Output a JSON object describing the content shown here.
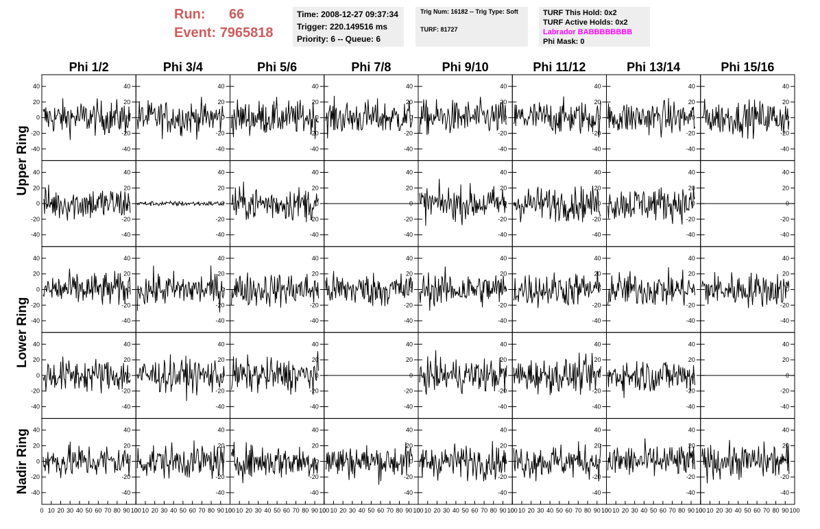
{
  "header": {
    "run_label": "Run:",
    "run_value": "66",
    "event_label": "Event:",
    "event_value": "7965818",
    "time": "Time: 2008-12-27 09:37:34",
    "trigger": "Trigger: 220.149516 ms",
    "priority": "Priority: 6 -- Queue: 6",
    "trig_num": "Trig Num: 16182 -- Trig Type: Soft",
    "turf": "TURF: 81727",
    "turf_hold": "TURF This Hold: 0x2",
    "turf_active": "TURF Active Holds: 0x2",
    "labrador": "Labrador BABBBBBBBB",
    "phi_mask": "Phi Mask: 0"
  },
  "columns": [
    "Phi 1/2",
    "Phi 3/4",
    "Phi 5/6",
    "Phi 7/8",
    "Phi 9/10",
    "Phi 11/12",
    "Phi 13/14",
    "Phi 15/16"
  ],
  "rings": [
    "Upper Ring",
    "Lower Ring",
    "Nadir Ring"
  ],
  "y_ticks": [
    "40",
    "20",
    "0",
    "-20",
    "-40"
  ],
  "x_ticks": [
    "0",
    "10",
    "20",
    "30",
    "40",
    "50",
    "60",
    "70",
    "80",
    "90",
    "100"
  ],
  "chart_data": {
    "type": "line",
    "title": "",
    "xlim": [
      0,
      100
    ],
    "ylim": [
      -55,
      55
    ],
    "rows": 5,
    "cols": 8,
    "flat_panels": [
      [
        1,
        3
      ],
      [
        1,
        7
      ],
      [
        3,
        3
      ],
      [
        3,
        7
      ]
    ],
    "low_amplitude_panels": [
      [
        1,
        1
      ]
    ],
    "typical_amplitude": 20,
    "line_color": "#000000"
  }
}
